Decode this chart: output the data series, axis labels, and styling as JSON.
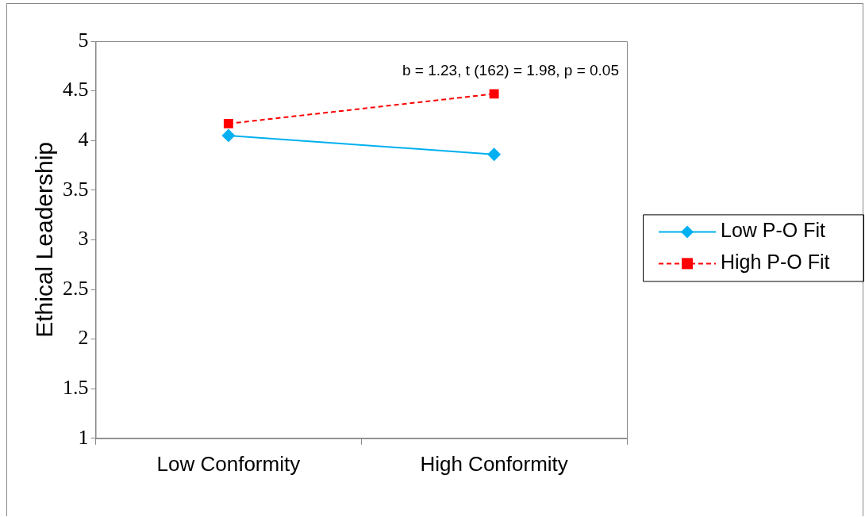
{
  "chart_data": {
    "type": "line",
    "ylabel": "Ethical Leadership",
    "categories": [
      "Low Conformity",
      "High Conformity"
    ],
    "series": [
      {
        "name": "Low P-O Fit",
        "color": "#00b0f0",
        "values": [
          4.05,
          3.86
        ],
        "marker": "diamond",
        "line_style": "solid"
      },
      {
        "name": "High P-O Fit",
        "color": "#ff0000",
        "values": [
          4.17,
          4.47
        ],
        "marker": "square",
        "line_style": "dashed"
      }
    ],
    "ylim": [
      1,
      5
    ],
    "yticks": [
      1,
      1.5,
      2,
      2.5,
      3,
      3.5,
      4,
      4.5,
      5
    ],
    "grid": false,
    "legend": "right",
    "annotations": [
      "b = 1.23, t (162) = 1.98, p = 0.05"
    ]
  }
}
